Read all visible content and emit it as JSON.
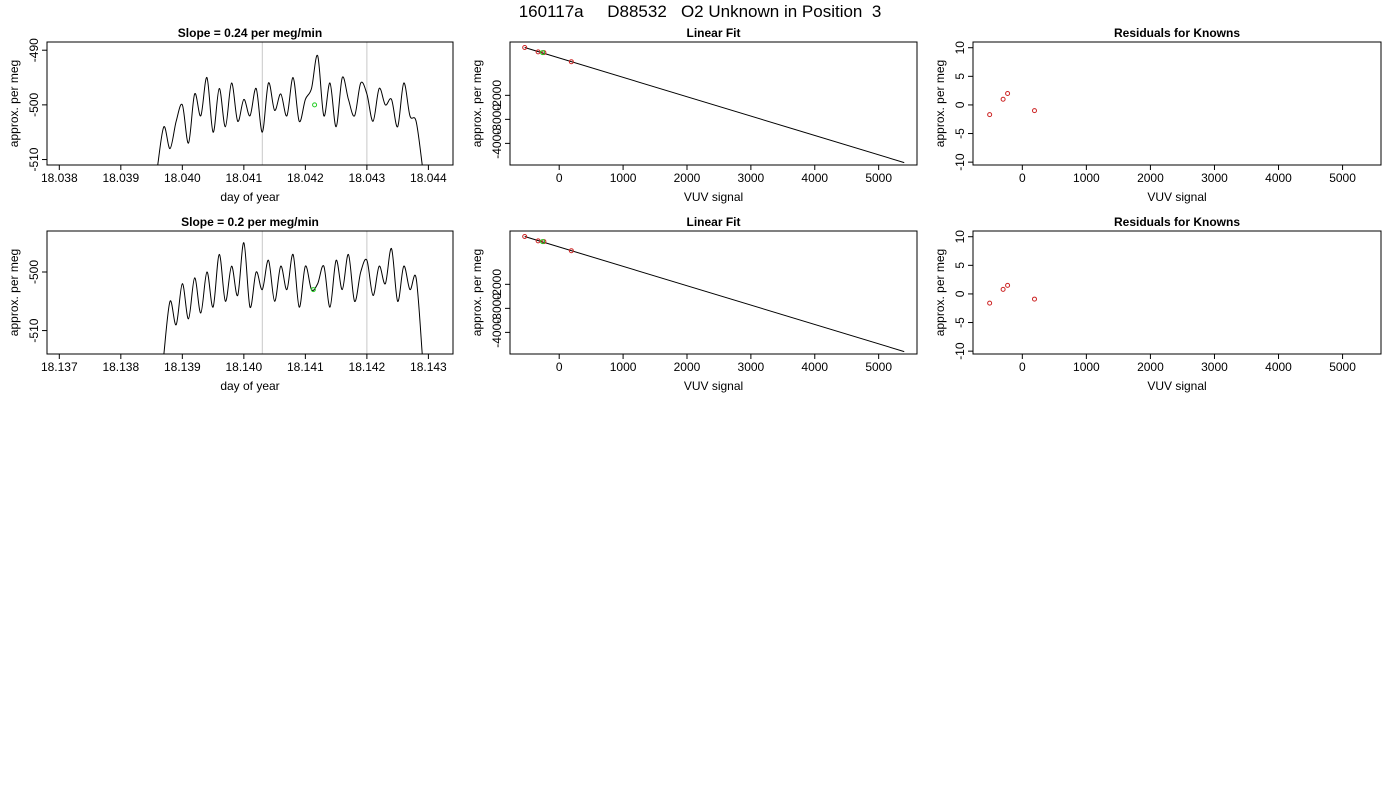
{
  "figure": {
    "title": "160117a     D88532   O2 Unknown in Position  3"
  },
  "chart_data": [
    {
      "type": "line",
      "title": "Slope =  0.24  per meg/min",
      "xlabel": "day of year",
      "ylabel": "approx. per meg",
      "xlim": [
        18.0378,
        18.0444
      ],
      "ylim": [
        -511,
        -488.5
      ],
      "x_ticks": [
        "18.038",
        "18.039",
        "18.040",
        "18.041",
        "18.042",
        "18.043",
        "18.044"
      ],
      "x_tick_values": [
        18.038,
        18.039,
        18.04,
        18.041,
        18.042,
        18.043,
        18.044
      ],
      "y_ticks": [
        "-490",
        "-500",
        "-510"
      ],
      "y_tick_values": [
        -490,
        -500,
        -510
      ],
      "vlines": [
        18.0413,
        18.043
      ],
      "marker": {
        "x": 18.04215,
        "y": -500,
        "color": "#22cc22"
      },
      "series_color": "#000000",
      "series": [
        {
          "x": [
            18.0396,
            18.0397,
            18.0398,
            18.0399,
            18.04,
            18.0401,
            18.0402,
            18.0403,
            18.0404,
            18.0405,
            18.0406,
            18.0407,
            18.0408,
            18.0409,
            18.041,
            18.0411,
            18.0412,
            18.0413,
            18.0414,
            18.0415,
            18.0416,
            18.0417,
            18.0418,
            18.0419,
            18.042,
            18.0421,
            18.0422,
            18.0423,
            18.0424,
            18.0425,
            18.0426,
            18.0427,
            18.0428,
            18.0429,
            18.043,
            18.0431,
            18.0432,
            18.0433,
            18.0434,
            18.0435,
            18.0436,
            18.0437,
            18.0438,
            18.0439
          ],
          "y": [
            -511,
            -504,
            -508,
            -503,
            -500,
            -507,
            -498,
            -502,
            -495,
            -505,
            -497,
            -504,
            -496,
            -503,
            -499,
            -502,
            -497,
            -505,
            -496,
            -501,
            -498,
            -502,
            -495,
            -503,
            -499,
            -497,
            -491,
            -502,
            -496,
            -504,
            -495,
            -499,
            -502,
            -496,
            -498,
            -503,
            -497,
            -500,
            -499,
            -504,
            -496,
            -502,
            -503,
            -511
          ]
        }
      ]
    },
    {
      "type": "scatter",
      "title": "Linear Fit",
      "xlabel": "VUV signal",
      "ylabel": "approx. per meg",
      "xlim": [
        -770,
        5600
      ],
      "ylim": [
        -4900,
        220
      ],
      "x_ticks": [
        "0",
        "1000",
        "2000",
        "3000",
        "4000",
        "5000"
      ],
      "x_tick_values": [
        0,
        1000,
        2000,
        3000,
        4000,
        5000
      ],
      "y_ticks": [
        "-2000",
        "-3000",
        "-4000"
      ],
      "y_tick_values": [
        -2000,
        -3000,
        -4000
      ],
      "fit_line": {
        "x": [
          -540,
          5400
        ],
        "y": [
          -10,
          -4800
        ]
      },
      "knowns": {
        "x": [
          -540,
          -330,
          -240,
          190
        ],
        "y": [
          -10,
          -190,
          -220,
          -600
        ]
      },
      "unknown": {
        "x": -260,
        "y": -220
      },
      "known_color": "#cc2222",
      "unknown_color": "#22cc22",
      "line_color": "#000000"
    },
    {
      "type": "scatter",
      "title": "Residuals for Knowns",
      "xlabel": "VUV signal",
      "ylabel": "approx. per meg",
      "xlim": [
        -770,
        5600
      ],
      "ylim": [
        -10.5,
        11
      ],
      "x_ticks": [
        "0",
        "1000",
        "2000",
        "3000",
        "4000",
        "5000"
      ],
      "x_tick_values": [
        0,
        1000,
        2000,
        3000,
        4000,
        5000
      ],
      "y_ticks": [
        "10",
        "5",
        "0",
        "-5",
        "-10"
      ],
      "y_tick_values": [
        10,
        5,
        0,
        -5,
        -10
      ],
      "points": {
        "x": [
          -510,
          -300,
          -230,
          190
        ],
        "y": [
          -1.7,
          1,
          2,
          -1
        ]
      },
      "point_color": "#cc2222"
    },
    {
      "type": "line",
      "title": "Slope =  0.2  per meg/min",
      "xlabel": "day of year",
      "ylabel": "approx. per meg",
      "xlim": [
        18.1368,
        18.1434
      ],
      "ylim": [
        -514,
        -493
      ],
      "x_ticks": [
        "18.137",
        "18.138",
        "18.139",
        "18.140",
        "18.141",
        "18.142",
        "18.143"
      ],
      "x_tick_values": [
        18.137,
        18.138,
        18.139,
        18.14,
        18.141,
        18.142,
        18.143
      ],
      "y_ticks": [
        "-500",
        "-510"
      ],
      "y_tick_values": [
        -500,
        -510
      ],
      "vlines": [
        18.1403,
        18.142
      ],
      "marker": {
        "x": 18.14113,
        "y": -503,
        "color": "#22cc22"
      },
      "series_color": "#000000",
      "series": [
        {
          "x": [
            18.1387,
            18.1388,
            18.1389,
            18.139,
            18.1391,
            18.1392,
            18.1393,
            18.1394,
            18.1395,
            18.1396,
            18.1397,
            18.1398,
            18.1399,
            18.14,
            18.1401,
            18.1402,
            18.1403,
            18.1404,
            18.1405,
            18.1406,
            18.1407,
            18.1408,
            18.1409,
            18.141,
            18.1411,
            18.1412,
            18.1413,
            18.1414,
            18.1415,
            18.1416,
            18.1417,
            18.1418,
            18.1419,
            18.142,
            18.1421,
            18.1422,
            18.1423,
            18.1424,
            18.1425,
            18.1426,
            18.1427,
            18.1428,
            18.1429
          ],
          "y": [
            -514,
            -505,
            -509,
            -502,
            -508,
            -501,
            -507,
            -500,
            -506,
            -497,
            -505,
            -499,
            -504,
            -495,
            -506,
            -500,
            -503,
            -498,
            -505,
            -499,
            -503,
            -497,
            -506,
            -499,
            -503,
            -502,
            -499,
            -506,
            -498,
            -503,
            -497,
            -505,
            -500,
            -498,
            -504,
            -499,
            -502,
            -496,
            -505,
            -499,
            -503,
            -501,
            -514
          ]
        }
      ]
    },
    {
      "type": "scatter",
      "title": "Linear Fit",
      "xlabel": "VUV signal",
      "ylabel": "approx. per meg",
      "xlim": [
        -770,
        5600
      ],
      "ylim": [
        -4900,
        220
      ],
      "x_ticks": [
        "0",
        "1000",
        "2000",
        "3000",
        "4000",
        "5000"
      ],
      "x_tick_values": [
        0,
        1000,
        2000,
        3000,
        4000,
        5000
      ],
      "y_ticks": [
        "-2000",
        "-3000",
        "-4000"
      ],
      "y_tick_values": [
        -2000,
        -3000,
        -4000
      ],
      "fit_line": {
        "x": [
          -540,
          5400
        ],
        "y": [
          -10,
          -4800
        ]
      },
      "knowns": {
        "x": [
          -540,
          -330,
          -240,
          190
        ],
        "y": [
          -10,
          -190,
          -220,
          -600
        ]
      },
      "unknown": {
        "x": -260,
        "y": -220
      },
      "known_color": "#cc2222",
      "unknown_color": "#22cc22",
      "line_color": "#000000"
    },
    {
      "type": "scatter",
      "title": "Residuals for Knowns",
      "xlabel": "VUV signal",
      "ylabel": "approx. per meg",
      "xlim": [
        -770,
        5600
      ],
      "ylim": [
        -10.5,
        11
      ],
      "x_ticks": [
        "0",
        "1000",
        "2000",
        "3000",
        "4000",
        "5000"
      ],
      "x_tick_values": [
        0,
        1000,
        2000,
        3000,
        4000,
        5000
      ],
      "y_ticks": [
        "10",
        "5",
        "0",
        "-5",
        "-10"
      ],
      "y_tick_values": [
        10,
        5,
        0,
        -5,
        -10
      ],
      "points": {
        "x": [
          -510,
          -300,
          -230,
          190
        ],
        "y": [
          -1.6,
          0.8,
          1.5,
          -0.9
        ]
      },
      "point_color": "#cc2222"
    }
  ]
}
